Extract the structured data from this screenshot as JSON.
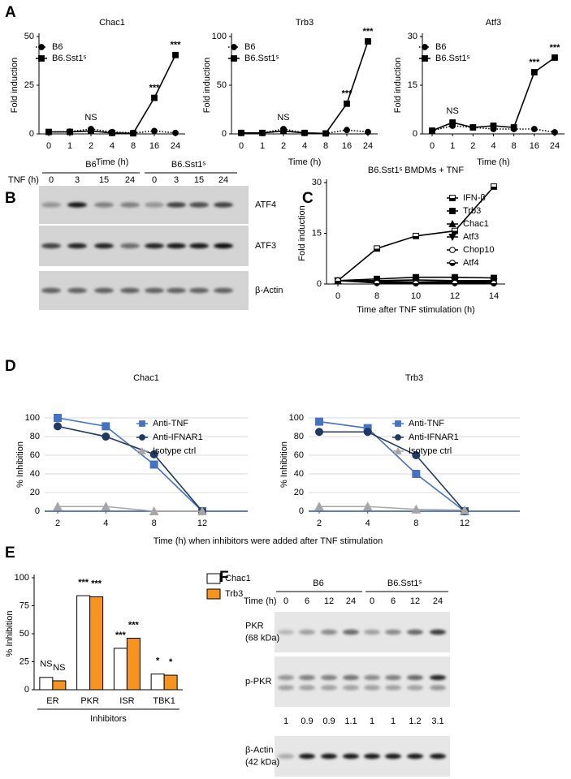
{
  "panel_labels": [
    "A",
    "B",
    "C",
    "D",
    "E",
    "F"
  ],
  "chart_data": [
    {
      "type": "line",
      "title": "Chac1",
      "x_label": "Time (h)",
      "y_label": "Fold induction",
      "categories": [
        "0",
        "1",
        "2",
        "4",
        "8",
        "16",
        "24"
      ],
      "series": [
        {
          "name": "B6",
          "color": "#000000",
          "line_style": "dotted",
          "marker": "circle",
          "values": [
            1,
            1.2,
            2.5,
            1,
            0.5,
            1.5,
            0.5
          ]
        },
        {
          "name": "B6.Sst1ˢ",
          "color": "#000000",
          "line_style": "solid",
          "marker": "square",
          "values": [
            1,
            1,
            1.5,
            0.5,
            0.3,
            18.5,
            40.5
          ]
        }
      ],
      "ylim": [
        0,
        50
      ],
      "yticks": [
        0,
        25,
        50
      ],
      "annotations": [
        {
          "text": "NS",
          "category": "2"
        },
        {
          "text": "***",
          "category": "16"
        },
        {
          "text": "***",
          "category": "24"
        }
      ]
    },
    {
      "type": "line",
      "title": "Trb3",
      "x_label": "Time (h)",
      "y_label": "Fold induction",
      "categories": [
        "0",
        "1",
        "2",
        "4",
        "8",
        "16",
        "24"
      ],
      "series": [
        {
          "name": "B6",
          "color": "#000000",
          "line_style": "dotted",
          "marker": "circle",
          "values": [
            1,
            1,
            5,
            1,
            0.5,
            4,
            2
          ]
        },
        {
          "name": "B6.Sst1ˢ",
          "color": "#000000",
          "line_style": "solid",
          "marker": "square",
          "values": [
            1,
            1,
            3,
            1,
            0.5,
            31,
            95
          ]
        }
      ],
      "ylim": [
        0,
        100
      ],
      "yticks": [
        0,
        50,
        100
      ],
      "annotations": [
        {
          "text": "NS",
          "category": "2"
        },
        {
          "text": "***",
          "category": "16"
        },
        {
          "text": "***",
          "category": "24"
        }
      ]
    },
    {
      "type": "line",
      "title": "Atf3",
      "x_label": "Time (h)",
      "y_label": "Fold induction",
      "categories": [
        "0",
        "1",
        "2",
        "4",
        "8",
        "16",
        "24"
      ],
      "series": [
        {
          "name": "B6",
          "color": "#000000",
          "line_style": "dotted",
          "marker": "circle",
          "values": [
            1,
            2.5,
            2,
            1.5,
            1.5,
            1.5,
            0.5
          ]
        },
        {
          "name": "B6.Sst1ˢ",
          "color": "#000000",
          "line_style": "solid",
          "marker": "square",
          "values": [
            1,
            3.5,
            2,
            2.5,
            2,
            19,
            23.5
          ]
        }
      ],
      "ylim": [
        0,
        30
      ],
      "yticks": [
        0,
        15,
        30
      ],
      "annotations": [
        {
          "text": "NS",
          "category": "1"
        },
        {
          "text": "***",
          "category": "16"
        },
        {
          "text": "***",
          "category": "24"
        }
      ]
    },
    {
      "type": "line",
      "title": "B6.Sst1ˢ BMDMs + TNF",
      "x_label": "Time after TNF stimulation (h)",
      "y_label": "Fold induction",
      "categories": [
        "0",
        "8",
        "10",
        "12",
        "14"
      ],
      "series": [
        {
          "name": "IFN-β",
          "color": "#000000",
          "line_style": "solid",
          "marker": "square-half",
          "values": [
            1,
            10.5,
            14.2,
            15.7,
            28.8
          ]
        },
        {
          "name": "Trb3",
          "color": "#000000",
          "line_style": "solid",
          "marker": "square",
          "values": [
            1,
            1.5,
            2,
            2,
            1.8
          ]
        },
        {
          "name": "Chac1",
          "color": "#000000",
          "line_style": "solid",
          "marker": "triangle",
          "values": [
            1,
            1,
            1.2,
            1,
            1
          ]
        },
        {
          "name": "Atf3",
          "color": "#000000",
          "line_style": "solid",
          "marker": "triangle-down",
          "values": [
            1,
            0.8,
            0.6,
            0.8,
            0.7
          ]
        },
        {
          "name": "Chop10",
          "color": "#000000",
          "line_style": "solid",
          "marker": "circle-open",
          "values": [
            1,
            0.5,
            0.4,
            0.5,
            0.4
          ]
        },
        {
          "name": "Atf4",
          "color": "#000000",
          "line_style": "solid",
          "marker": "circle-half",
          "values": [
            1,
            0.3,
            0.2,
            0.3,
            0.2
          ]
        }
      ],
      "ylim": [
        0,
        30
      ],
      "yticks": [
        0,
        15,
        30
      ]
    },
    {
      "type": "line",
      "title": "Chac1",
      "x_label": "Time (h) when inhibitors were added after TNF stimulation",
      "y_label": "% Inhibition",
      "categories": [
        "2",
        "4",
        "8",
        "12"
      ],
      "grid": true,
      "series": [
        {
          "name": "Anti-TNF",
          "color": "#4472c4",
          "line_style": "solid",
          "marker": "square",
          "values": [
            100,
            91,
            50,
            0
          ]
        },
        {
          "name": "Anti-IFNAR1",
          "color": "#1f3864",
          "line_style": "solid",
          "marker": "circle",
          "values": [
            91,
            80,
            61,
            0
          ]
        },
        {
          "name": "Isotype ctrl",
          "color": "#a6a6a6",
          "line_style": "solid",
          "marker": "triangle",
          "values": [
            5,
            5,
            0,
            0
          ]
        }
      ],
      "ylim": [
        0,
        100
      ],
      "yticks": [
        0,
        20,
        40,
        60,
        80,
        100
      ]
    },
    {
      "type": "line",
      "title": "Trb3",
      "y_label": "% Inhibition",
      "categories": [
        "2",
        "4",
        "8",
        "12"
      ],
      "grid": true,
      "series": [
        {
          "name": "Anti-TNF",
          "color": "#4472c4",
          "line_style": "solid",
          "marker": "square",
          "values": [
            96,
            89,
            40,
            0
          ]
        },
        {
          "name": "Anti-IFNAR1",
          "color": "#1f3864",
          "line_style": "solid",
          "marker": "circle",
          "values": [
            85,
            85,
            60,
            0
          ]
        },
        {
          "name": "Isotype ctrl",
          "color": "#a6a6a6",
          "line_style": "solid",
          "marker": "triangle",
          "values": [
            5,
            5,
            2,
            1
          ]
        }
      ],
      "ylim": [
        0,
        100
      ],
      "yticks": [
        0,
        20,
        40,
        60,
        80,
        100
      ]
    },
    {
      "type": "bar",
      "x_label": "Inhibitors",
      "y_label": "% Inhibition",
      "categories": [
        "ER",
        "PKR",
        "ISR",
        "TBK1"
      ],
      "series": [
        {
          "name": "Chac1",
          "color": "#ffffff",
          "values": [
            11,
            84,
            37,
            14
          ],
          "significance": [
            "NS",
            "***",
            "***",
            "*"
          ]
        },
        {
          "name": "Trb3",
          "color": "#f7941d",
          "values": [
            8,
            83,
            46,
            13
          ],
          "significance": [
            "NS",
            "***",
            "***",
            "*"
          ]
        }
      ],
      "ylim": [
        0,
        100
      ],
      "yticks": [
        0,
        25,
        50,
        75,
        100
      ]
    }
  ],
  "blots": {
    "B": {
      "groups": [
        "B6",
        "B6.Sst1ˢ"
      ],
      "lane_header": "TNF (h)",
      "lanes": [
        "0",
        "3",
        "15",
        "24",
        "0",
        "3",
        "15",
        "24"
      ],
      "rows": [
        [
          "ATF4"
        ],
        [
          "ATF3"
        ],
        [
          "β-Actin"
        ]
      ]
    },
    "F": {
      "groups": [
        "B6",
        "B6.Sst1ˢ"
      ],
      "lane_header": "Time (h)",
      "lanes": [
        "0",
        "6",
        "12",
        "24",
        "0",
        "6",
        "12",
        "24"
      ],
      "rows": [
        [
          "PKR",
          "(68 kDa)"
        ],
        [
          "p-PKR"
        ],
        [
          "β-Actin",
          "(42 kDa)"
        ]
      ],
      "quantification": [
        1,
        0.9,
        0.9,
        1.1,
        1,
        1,
        1.2,
        3.1
      ]
    }
  }
}
